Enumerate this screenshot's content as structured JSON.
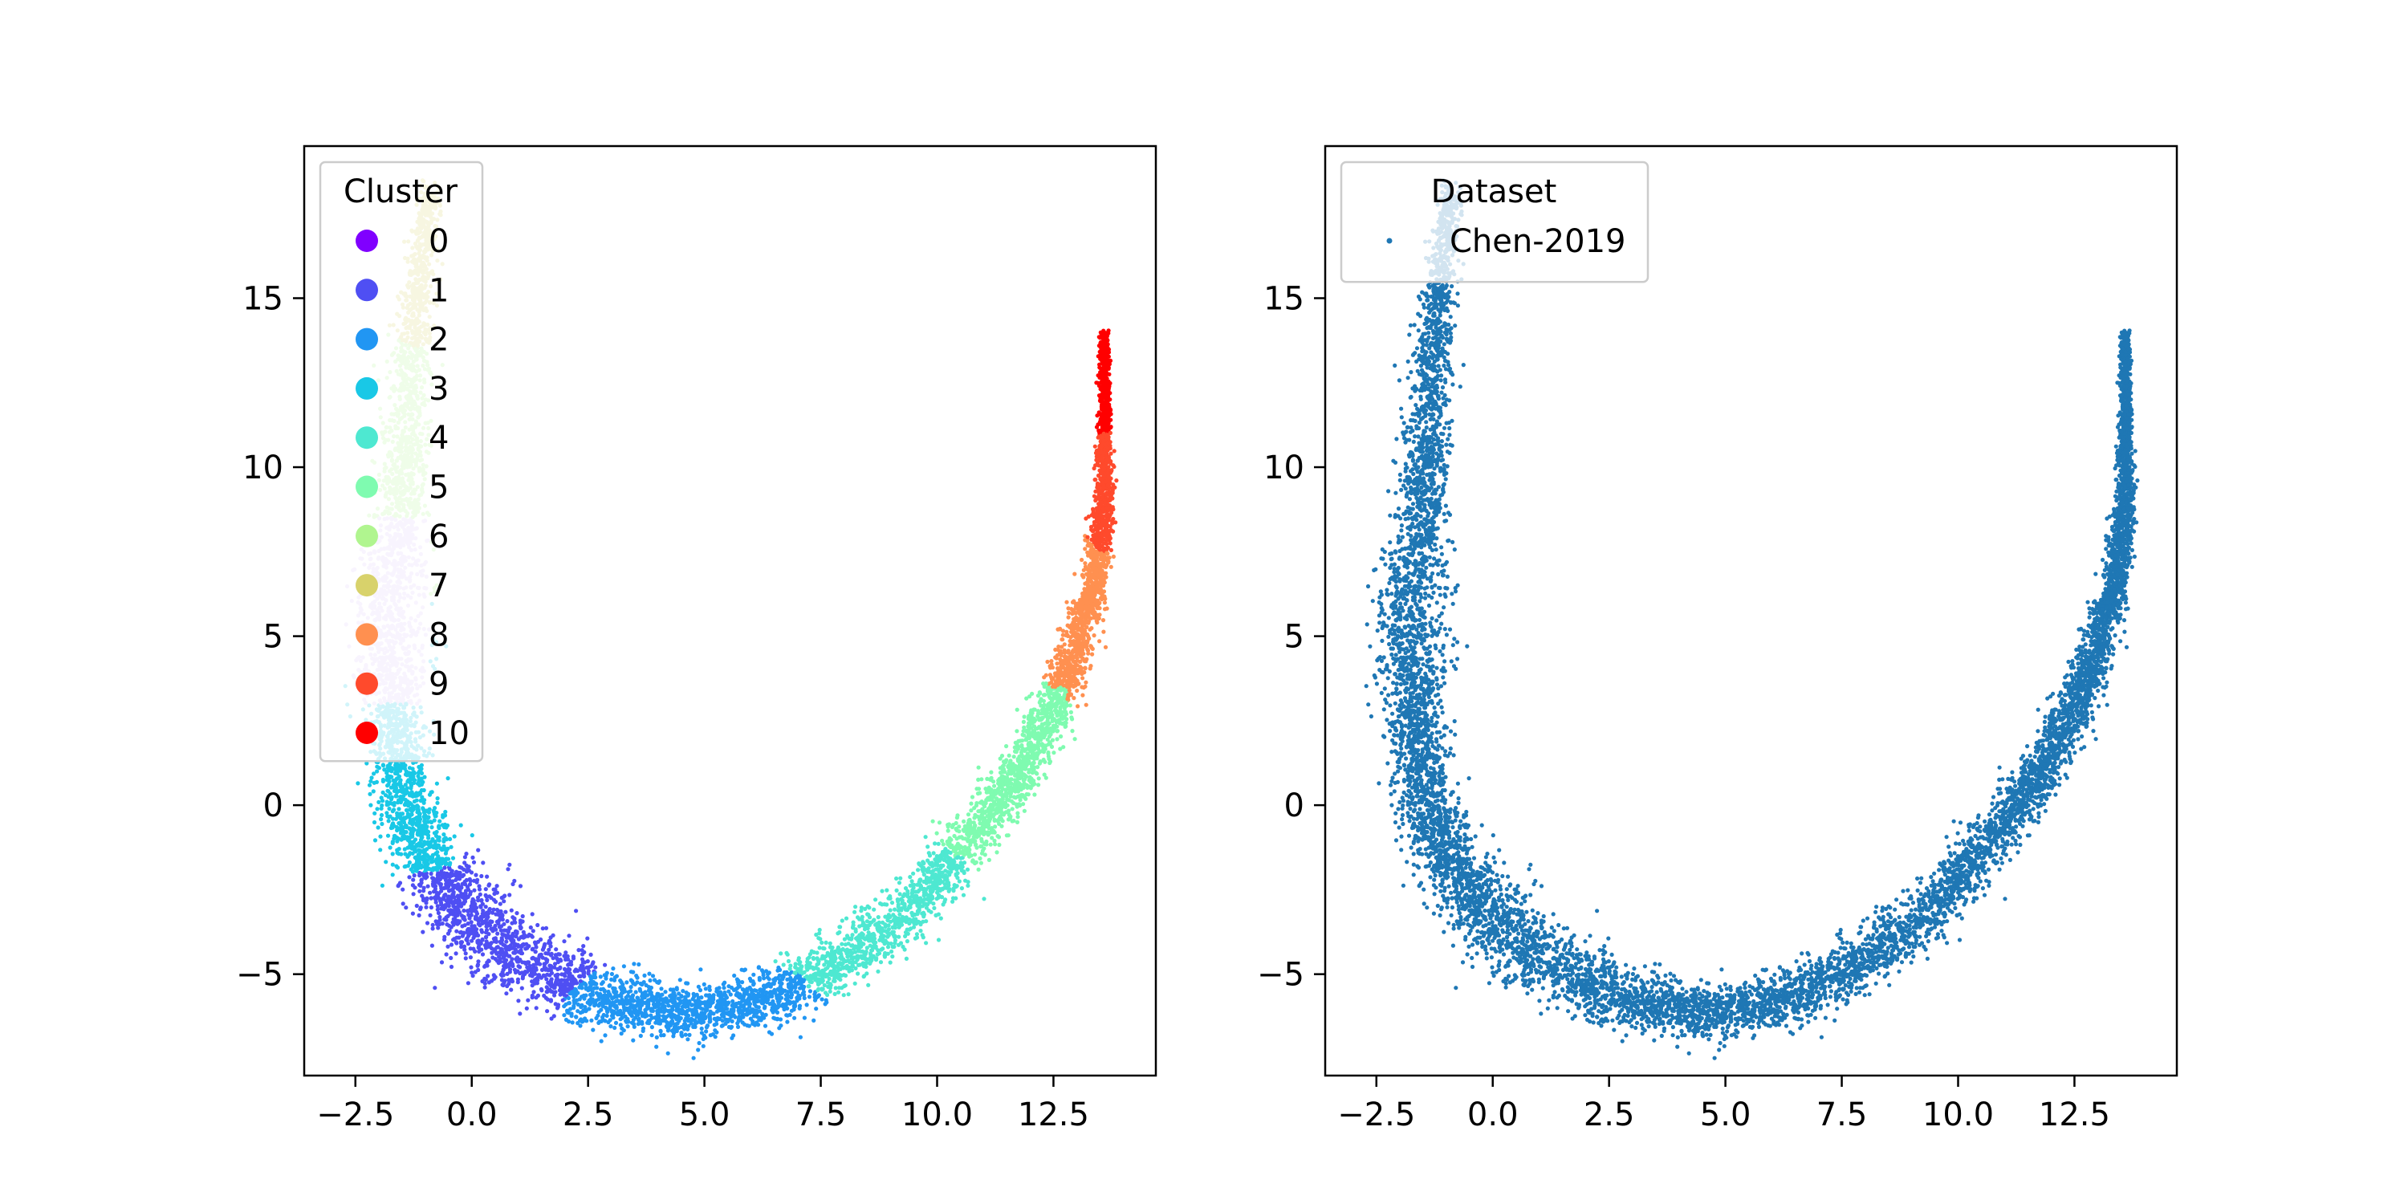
{
  "chart_data": [
    {
      "type": "scatter",
      "title": "",
      "xlabel": "",
      "ylabel": "",
      "xlim": [
        -3.6,
        14.7
      ],
      "ylim": [
        -8.0,
        19.5
      ],
      "x_ticks": [
        -2.5,
        0.0,
        2.5,
        5.0,
        7.5,
        10.0,
        12.5
      ],
      "x_tick_labels": [
        "−2.5",
        "0.0",
        "2.5",
        "5.0",
        "7.5",
        "10.0",
        "12.5"
      ],
      "y_ticks": [
        -5,
        0,
        5,
        10,
        15
      ],
      "y_tick_labels": [
        "−5",
        "0",
        "5",
        "10",
        "15"
      ],
      "grid": false,
      "legend": {
        "title": "Cluster",
        "placement": "upper-left",
        "entries": [
          "0",
          "1",
          "2",
          "3",
          "4",
          "5",
          "6",
          "7",
          "8",
          "9",
          "10"
        ]
      },
      "series": [
        {
          "name": "0",
          "color": "#8000ff",
          "x_range": [
            -1.0,
            -0.6
          ],
          "y_range": [
            17.0,
            18.5
          ],
          "n_points": 0
        },
        {
          "name": "1",
          "color": "#4f4ff3",
          "x_range": [
            -1.7,
            2.7
          ],
          "y_range": [
            -6.5,
            -2.0
          ]
        },
        {
          "name": "2",
          "color": "#2196f3",
          "x_range": [
            1.8,
            7.2
          ],
          "y_range": [
            -6.8,
            -4.8
          ]
        },
        {
          "name": "3",
          "color": "#19c8e6",
          "x_range": [
            -2.6,
            -0.2
          ],
          "y_range": [
            -1.8,
            3.2
          ]
        },
        {
          "name": "4",
          "color": "#4ee8d1",
          "x_range": [
            6.8,
            10.6
          ],
          "y_range": [
            -5.5,
            -1.0
          ]
        },
        {
          "name": "5",
          "color": "#7ffbb0",
          "x_range": [
            9.8,
            12.8
          ],
          "y_range": [
            -1.5,
            3.8
          ]
        },
        {
          "name": "6",
          "color": "#b0f58f",
          "x_range": [
            -1.8,
            -0.6
          ],
          "y_range": [
            9.0,
            14.0
          ]
        },
        {
          "name": "7",
          "color": "#d8d26b",
          "x_range": [
            -1.6,
            -0.5
          ],
          "y_range": [
            13.0,
            18.5
          ]
        },
        {
          "name": "8",
          "color": "#ff9050",
          "x_range": [
            12.2,
            13.8
          ],
          "y_range": [
            3.5,
            8.0
          ]
        },
        {
          "name": "9",
          "color": "#ff4a2c",
          "x_range": [
            13.2,
            13.9
          ],
          "y_range": [
            7.5,
            11.0
          ]
        },
        {
          "name": "10",
          "color": "#ff0000",
          "x_range": [
            13.4,
            13.7
          ],
          "y_range": [
            11.0,
            14.0
          ]
        }
      ],
      "extra_cloud": {
        "color": "#dcc8f8",
        "x_range": [
          -2.7,
          -0.9
        ],
        "y_range": [
          3.0,
          8.5
        ]
      }
    },
    {
      "type": "scatter",
      "title": "",
      "xlabel": "",
      "ylabel": "",
      "xlim": [
        -3.6,
        14.7
      ],
      "ylim": [
        -8.0,
        19.5
      ],
      "x_ticks": [
        -2.5,
        0.0,
        2.5,
        5.0,
        7.5,
        10.0,
        12.5
      ],
      "x_tick_labels": [
        "−2.5",
        "0.0",
        "2.5",
        "5.0",
        "7.5",
        "10.0",
        "12.5"
      ],
      "y_ticks": [
        -5,
        0,
        5,
        10,
        15
      ],
      "y_tick_labels": [
        "−5",
        "0",
        "5",
        "10",
        "15"
      ],
      "grid": false,
      "legend": {
        "title": "Dataset",
        "placement": "upper-left",
        "entries": [
          "Chen-2019"
        ]
      },
      "series": [
        {
          "name": "Chen-2019",
          "color": "#1f77b4",
          "x_range": [
            -2.8,
            13.9
          ],
          "y_range": [
            -6.8,
            18.5
          ]
        }
      ]
    }
  ]
}
